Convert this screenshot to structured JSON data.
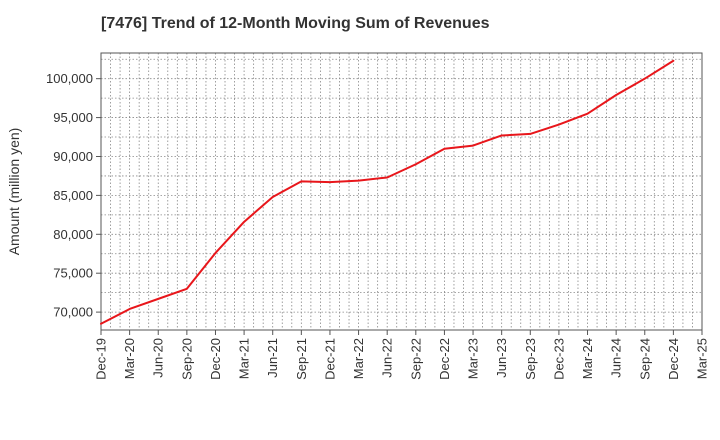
{
  "chart_data": {
    "type": "line",
    "title": "[7476]  Trend of 12-Month Moving Sum of Revenues",
    "xlabel": "",
    "ylabel": "Amount (million yen)",
    "x_ticks": [
      "Dec-19",
      "Mar-20",
      "Jun-20",
      "Sep-20",
      "Dec-20",
      "Mar-21",
      "Jun-21",
      "Sep-21",
      "Dec-21",
      "Mar-22",
      "Jun-22",
      "Sep-22",
      "Dec-22",
      "Mar-23",
      "Jun-23",
      "Sep-23",
      "Dec-23",
      "Mar-24",
      "Jun-24",
      "Sep-24",
      "Dec-24",
      "Mar-25"
    ],
    "y_ticks": [
      "70,000",
      "75,000",
      "80,000",
      "85,000",
      "90,000",
      "95,000",
      "100,000"
    ],
    "ylim": [
      67700,
      103300
    ],
    "grid": true,
    "series_color": "#e8161b",
    "series": [
      {
        "name": "",
        "x": [
          "Dec-19",
          "Mar-20",
          "Jun-20",
          "Sep-20",
          "Dec-20",
          "Mar-21",
          "Jun-21",
          "Sep-21",
          "Dec-21",
          "Mar-22",
          "Jun-22",
          "Sep-22",
          "Dec-22",
          "Mar-23",
          "Jun-23",
          "Sep-23",
          "Dec-23",
          "Mar-24",
          "Jun-24",
          "Sep-24",
          "Dec-24"
        ],
        "values": [
          68500,
          70400,
          71700,
          73000,
          77600,
          81600,
          84800,
          86800,
          86700,
          86900,
          87300,
          89000,
          91000,
          91400,
          92700,
          92900,
          94100,
          95500,
          97900,
          100000,
          102300
        ]
      }
    ]
  }
}
